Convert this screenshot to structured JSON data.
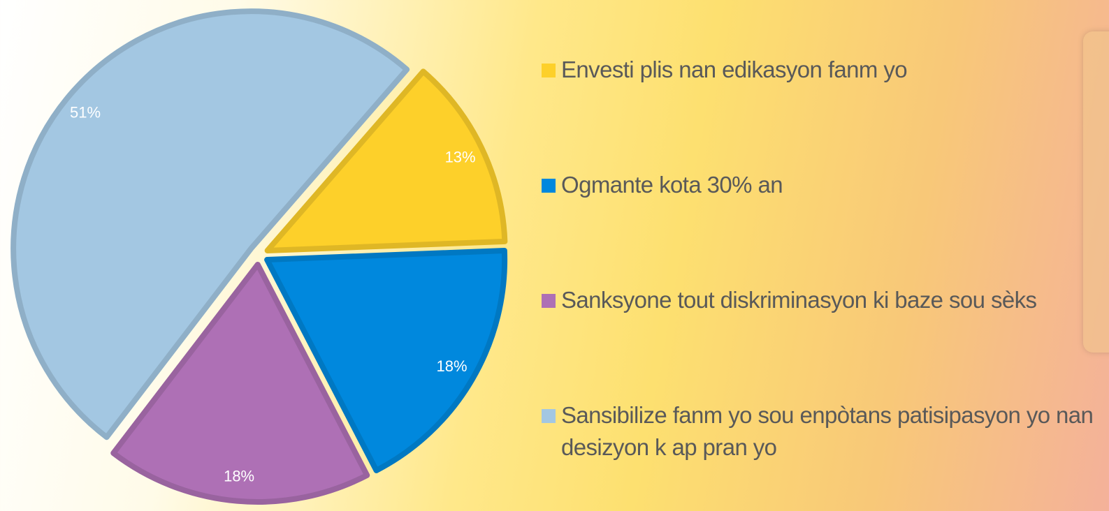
{
  "chart_data": {
    "type": "pie",
    "categories": [
      "Envesti plis nan edikasyon fanm yo",
      "Ogmante kota 30% an",
      "Sanksyone tout diskriminasyon ki baze sou sèks",
      "Sansibilize fanm yo sou enpòtans patisipasyon yo nan desizyon k ap pran yo"
    ],
    "values": [
      13,
      18,
      18,
      51
    ],
    "value_labels": [
      "13%",
      "18%",
      "18%",
      "51%"
    ],
    "colors": [
      "#fdd02a",
      "#0088dd",
      "#ae70b5",
      "#a3c7e2"
    ],
    "legend": "right"
  }
}
